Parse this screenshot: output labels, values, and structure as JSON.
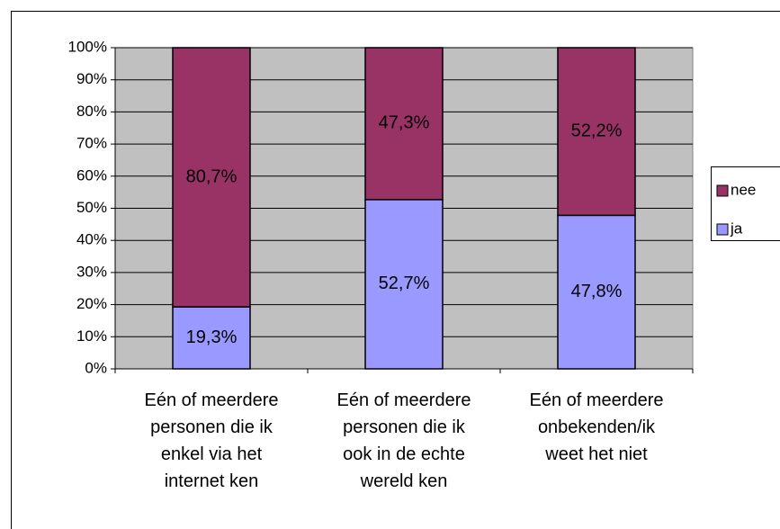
{
  "chart_data": {
    "type": "stacked_bar",
    "categories": [
      "Eén of meerdere personen die ik enkel via het internet ken",
      "Eén of meerdere personen die ik ook in de echte wereld ken",
      "Eén of meerdere onbekenden/ik weet het niet"
    ],
    "series": [
      {
        "name": "ja",
        "color": "#9999ff",
        "values": [
          19.3,
          52.7,
          47.8
        ],
        "value_labels": [
          "19,3%",
          "52,7%",
          "47,8%"
        ]
      },
      {
        "name": "nee",
        "color": "#993366",
        "values": [
          80.7,
          47.3,
          52.2
        ],
        "value_labels": [
          "80,7%",
          "47,3%",
          "52,2%"
        ]
      }
    ],
    "ylim": [
      0,
      100
    ],
    "yticks": [
      {
        "value": 0,
        "label": "0%"
      },
      {
        "value": 10,
        "label": "10%"
      },
      {
        "value": 20,
        "label": "20%"
      },
      {
        "value": 30,
        "label": "30%"
      },
      {
        "value": 40,
        "label": "40%"
      },
      {
        "value": 50,
        "label": "50%"
      },
      {
        "value": 60,
        "label": "60%"
      },
      {
        "value": 70,
        "label": "70%"
      },
      {
        "value": 80,
        "label": "80%"
      },
      {
        "value": 90,
        "label": "90%"
      },
      {
        "value": 100,
        "label": "100%"
      }
    ],
    "grid": true,
    "plot_background": "#c0c0c0",
    "legend": "right"
  }
}
